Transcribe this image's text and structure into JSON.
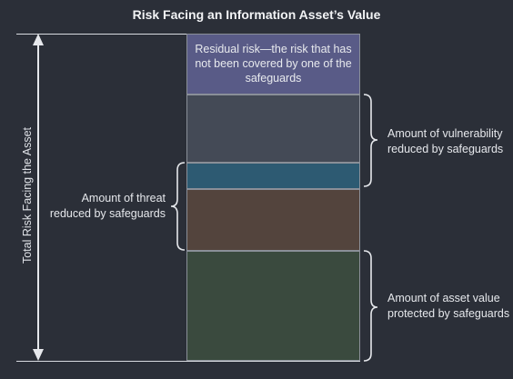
{
  "title": "Risk Facing an Information Asset’s Value",
  "total_label": "Total Risk Facing the Asset",
  "residual_label": "Residual risk—the risk that has not been covered by one of the safeguards",
  "vulnerability_label": "Amount of vulnerability reduced by safeguards",
  "threat_label": "Amount of threat reduced by safeguards",
  "asset_label": "Amount of asset value protected by safeguards",
  "colors": {
    "residual": "#595b87",
    "vulnerability": "#444a56",
    "overlap": "#2d5a72",
    "threat": "#53443d",
    "asset": "#3a4a3e"
  }
}
